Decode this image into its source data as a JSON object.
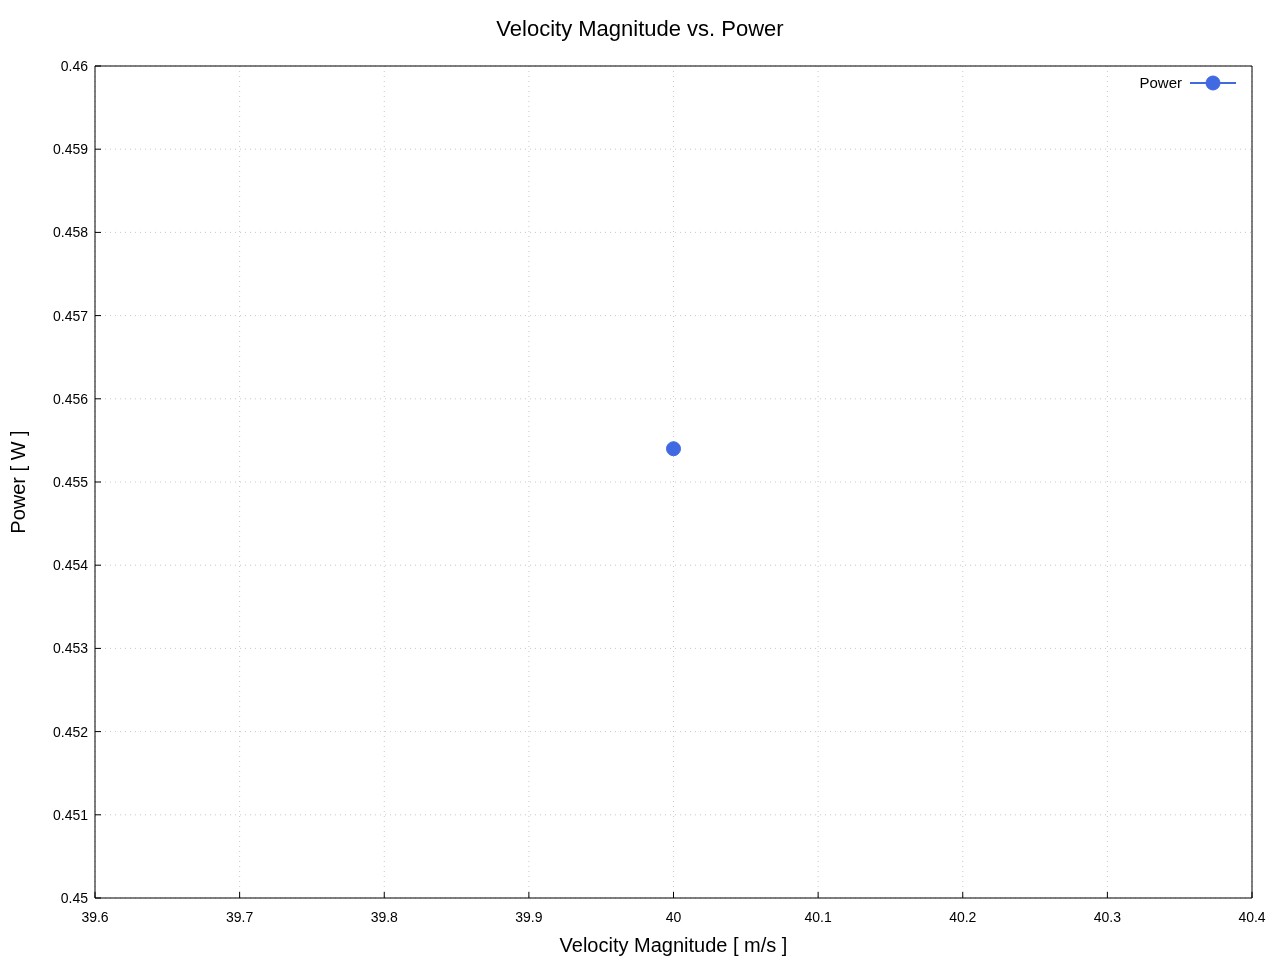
{
  "chart_data": {
    "type": "line",
    "title": "Velocity Magnitude vs. Power",
    "xlabel": "Velocity Magnitude [ m/s ]",
    "ylabel": "Power [ W ]",
    "x": [
      40
    ],
    "series": [
      {
        "name": "Power",
        "color": "#4169e1",
        "values": [
          0.4554
        ]
      }
    ],
    "xlim": [
      39.6,
      40.4
    ],
    "xticks": [
      39.6,
      39.7,
      39.8,
      39.9,
      40,
      40.1,
      40.2,
      40.3,
      40.4
    ],
    "ylim": [
      0.45,
      0.46
    ],
    "yticks": [
      0.45,
      0.451,
      0.452,
      0.453,
      0.454,
      0.455,
      0.456,
      0.457,
      0.458,
      0.459,
      0.46
    ],
    "grid": true,
    "legend": "top right",
    "marker": "circle",
    "line_style": "solid"
  }
}
